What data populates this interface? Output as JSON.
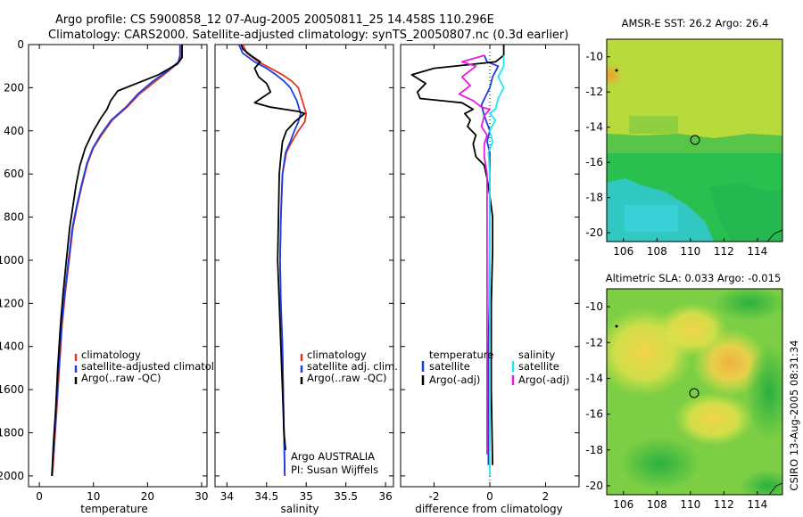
{
  "header": {
    "line1": "Argo profile: CS 5900858_12 07-Aug-2005 20050811_25 14.458S 110.296E",
    "line2": "Climatology: CARS2000. Satellite-adjusted climatology: synTS_20050807.nc (0.3d earlier)"
  },
  "footer": {
    "credit": "CSIRO 13-Aug-2005 08:31:34",
    "argo_org": "Argo AUSTRALIA",
    "pi": "PI: Susan Wijffels"
  },
  "colors": {
    "climatology": "#e8341c",
    "satellite": "#1a3fe0",
    "argo": "#000000",
    "sat_salinity": "#22e5f0",
    "argo_salinity": "#e51ce0"
  },
  "chart_data": [
    {
      "type": "line",
      "name": "temperature-profile",
      "xlabel": "temperature",
      "ylabel": "",
      "xlim": [
        -2,
        31
      ],
      "ylim": [
        2050,
        0
      ],
      "xticks": [
        0,
        10,
        20,
        30
      ],
      "yticks": [
        0,
        200,
        400,
        600,
        800,
        1000,
        1200,
        1400,
        1600,
        1800,
        2000
      ],
      "legend": [
        "climatology",
        "satellite-adjusted climatology",
        "Argo(..raw -QC)"
      ],
      "legend_position": "lower-right",
      "series": [
        {
          "name": "climatology",
          "color_key": "climatology",
          "points": [
            [
              26.3,
              0
            ],
            [
              26.3,
              50
            ],
            [
              25.8,
              80
            ],
            [
              24.0,
              120
            ],
            [
              21.5,
              170
            ],
            [
              18.5,
              230
            ],
            [
              16.2,
              290
            ],
            [
              13.5,
              350
            ],
            [
              11.5,
              420
            ],
            [
              10.0,
              480
            ],
            [
              8.9,
              550
            ],
            [
              7.9,
              650
            ],
            [
              7.0,
              750
            ],
            [
              6.2,
              850
            ],
            [
              5.5,
              1000
            ],
            [
              4.8,
              1150
            ],
            [
              4.2,
              1300
            ],
            [
              3.7,
              1500
            ],
            [
              3.2,
              1700
            ],
            [
              2.8,
              1850
            ],
            [
              2.4,
              2000
            ]
          ]
        },
        {
          "name": "satellite-adjusted climatology",
          "color_key": "satellite",
          "points": [
            [
              26.0,
              0
            ],
            [
              26.0,
              50
            ],
            [
              25.7,
              80
            ],
            [
              23.8,
              120
            ],
            [
              21.0,
              170
            ],
            [
              18.2,
              230
            ],
            [
              16.0,
              290
            ],
            [
              13.3,
              350
            ],
            [
              11.3,
              420
            ],
            [
              9.9,
              480
            ],
            [
              8.8,
              550
            ],
            [
              7.8,
              650
            ],
            [
              6.9,
              750
            ],
            [
              6.1,
              850
            ],
            [
              5.4,
              1000
            ],
            [
              4.7,
              1150
            ],
            [
              4.1,
              1300
            ],
            [
              3.6,
              1500
            ],
            [
              3.1,
              1700
            ],
            [
              2.7,
              1850
            ],
            [
              2.3,
              2000
            ]
          ]
        },
        {
          "name": "Argo(..raw -QC)",
          "color_key": "argo",
          "points": [
            [
              26.4,
              0
            ],
            [
              26.4,
              60
            ],
            [
              25.5,
              90
            ],
            [
              22.0,
              140
            ],
            [
              18.0,
              180
            ],
            [
              14.5,
              215
            ],
            [
              13.2,
              260
            ],
            [
              12.5,
              300
            ],
            [
              11.4,
              340
            ],
            [
              10.0,
              400
            ],
            [
              8.5,
              480
            ],
            [
              7.5,
              560
            ],
            [
              6.8,
              650
            ],
            [
              6.2,
              750
            ],
            [
              5.6,
              850
            ],
            [
              5.0,
              1000
            ],
            [
              4.4,
              1150
            ],
            [
              3.9,
              1300
            ],
            [
              3.4,
              1500
            ],
            [
              3.0,
              1700
            ],
            [
              2.6,
              1850
            ],
            [
              2.3,
              2000
            ]
          ]
        }
      ]
    },
    {
      "type": "line",
      "name": "salinity-profile",
      "xlabel": "salinity",
      "ylabel": "",
      "xlim": [
        33.85,
        36.1
      ],
      "ylim": [
        2050,
        0
      ],
      "xticks": [
        34,
        34.5,
        35,
        35.5,
        36
      ],
      "yticks": [
        0,
        200,
        400,
        600,
        800,
        1000,
        1200,
        1400,
        1600,
        1800,
        2000
      ],
      "legend": [
        "climatology",
        "satellite adj. clim.",
        "Argo(..raw -QC)"
      ],
      "legend_position": "lower-right",
      "series": [
        {
          "name": "climatology",
          "color_key": "climatology",
          "points": [
            [
              34.2,
              0
            ],
            [
              34.25,
              40
            ],
            [
              34.4,
              80
            ],
            [
              34.55,
              110
            ],
            [
              34.7,
              140
            ],
            [
              34.82,
              170
            ],
            [
              34.9,
              200
            ],
            [
              34.95,
              260
            ],
            [
              35.0,
              320
            ],
            [
              34.98,
              360
            ],
            [
              34.9,
              400
            ],
            [
              34.82,
              450
            ],
            [
              34.75,
              500
            ],
            [
              34.7,
              600
            ],
            [
              34.68,
              800
            ],
            [
              34.67,
              1000
            ],
            [
              34.68,
              1200
            ],
            [
              34.7,
              1400
            ],
            [
              34.71,
              1600
            ],
            [
              34.72,
              1800
            ],
            [
              34.73,
              2000
            ]
          ]
        },
        {
          "name": "satellite adj. clim.",
          "color_key": "satellite",
          "points": [
            [
              34.15,
              0
            ],
            [
              34.2,
              40
            ],
            [
              34.35,
              80
            ],
            [
              34.5,
              110
            ],
            [
              34.62,
              140
            ],
            [
              34.72,
              170
            ],
            [
              34.8,
              200
            ],
            [
              34.88,
              260
            ],
            [
              34.93,
              320
            ],
            [
              34.9,
              360
            ],
            [
              34.85,
              400
            ],
            [
              34.8,
              450
            ],
            [
              34.74,
              500
            ],
            [
              34.7,
              600
            ],
            [
              34.68,
              800
            ],
            [
              34.67,
              1000
            ],
            [
              34.68,
              1200
            ],
            [
              34.7,
              1400
            ],
            [
              34.71,
              1600
            ],
            [
              34.72,
              1800
            ],
            [
              34.73,
              2000
            ]
          ]
        },
        {
          "name": "Argo(..raw -QC)",
          "color_key": "argo",
          "points": [
            [
              34.18,
              0
            ],
            [
              34.2,
              20
            ],
            [
              34.3,
              50
            ],
            [
              34.42,
              80
            ],
            [
              34.35,
              110
            ],
            [
              34.4,
              150
            ],
            [
              34.5,
              180
            ],
            [
              34.55,
              220
            ],
            [
              34.35,
              270
            ],
            [
              34.55,
              290
            ],
            [
              34.9,
              310
            ],
            [
              34.98,
              320
            ],
            [
              34.85,
              360
            ],
            [
              34.75,
              400
            ],
            [
              34.7,
              450
            ],
            [
              34.68,
              520
            ],
            [
              34.66,
              600
            ],
            [
              34.65,
              800
            ],
            [
              34.64,
              1000
            ],
            [
              34.66,
              1200
            ],
            [
              34.68,
              1400
            ],
            [
              34.7,
              1600
            ],
            [
              34.72,
              1800
            ],
            [
              34.74,
              1880
            ]
          ]
        }
      ]
    },
    {
      "type": "line",
      "name": "difference-profile",
      "xlabel": "difference from climatology",
      "ylabel": "",
      "xlim": [
        -3.2,
        3.2
      ],
      "ylim": [
        2050,
        0
      ],
      "xticks": [
        -2,
        0,
        2
      ],
      "yticks": [
        0,
        200,
        400,
        600,
        800,
        1000,
        1200,
        1400,
        1600,
        1800,
        2000
      ],
      "legend_left": {
        "heading": "temperature",
        "entries": [
          "satellite",
          "Argo(-adj)"
        ]
      },
      "legend_right": {
        "heading": "salinity",
        "entries": [
          "satellite",
          "Argo(-adj)"
        ]
      },
      "legend_position": "lower",
      "series": [
        {
          "name": "temperature satellite",
          "color_key": "satellite",
          "points": [
            [
              -0.2,
              50
            ],
            [
              -0.1,
              80
            ],
            [
              0.3,
              100
            ],
            [
              0.1,
              150
            ],
            [
              0.0,
              200
            ],
            [
              -0.3,
              280
            ],
            [
              -0.2,
              330
            ],
            [
              0.0,
              400
            ],
            [
              -0.1,
              450
            ],
            [
              0.0,
              500
            ],
            [
              0.0,
              700
            ],
            [
              -0.02,
              1200
            ],
            [
              -0.05,
              1400
            ],
            [
              -0.05,
              1800
            ],
            [
              -0.05,
              1950
            ]
          ]
        },
        {
          "name": "temperature Argo(-adj)",
          "color_key": "argo",
          "points": [
            [
              0.5,
              0
            ],
            [
              0.5,
              50
            ],
            [
              0.2,
              80
            ],
            [
              -2.0,
              110
            ],
            [
              -2.8,
              140
            ],
            [
              -2.3,
              180
            ],
            [
              -2.6,
              220
            ],
            [
              -2.5,
              250
            ],
            [
              -1.0,
              270
            ],
            [
              -0.6,
              300
            ],
            [
              -0.9,
              320
            ],
            [
              -0.7,
              350
            ],
            [
              -0.8,
              380
            ],
            [
              -0.5,
              420
            ],
            [
              -0.6,
              460
            ],
            [
              -0.5,
              520
            ],
            [
              -0.2,
              560
            ],
            [
              -0.1,
              620
            ],
            [
              0.0,
              700
            ],
            [
              0.1,
              800
            ],
            [
              0.1,
              950
            ],
            [
              0.05,
              1200
            ],
            [
              0.05,
              1600
            ],
            [
              0.1,
              1950
            ]
          ]
        },
        {
          "name": "salinity satellite",
          "color_key": "sat_salinity",
          "points": [
            [
              0.5,
              50
            ],
            [
              0.5,
              100
            ],
            [
              0.3,
              150
            ],
            [
              0.5,
              200
            ],
            [
              0.3,
              250
            ],
            [
              0.2,
              300
            ],
            [
              0.0,
              320
            ],
            [
              0.2,
              350
            ],
            [
              0.0,
              400
            ],
            [
              0.1,
              450
            ],
            [
              -0.05,
              500
            ],
            [
              0.0,
              600
            ],
            [
              0.0,
              800
            ],
            [
              0.0,
              1200
            ],
            [
              0.0,
              1600
            ],
            [
              0.0,
              2000
            ]
          ]
        },
        {
          "name": "salinity Argo(-adj)",
          "color_key": "argo_salinity",
          "points": [
            [
              -0.2,
              50
            ],
            [
              -1.0,
              80
            ],
            [
              -0.5,
              100
            ],
            [
              -1.0,
              150
            ],
            [
              -0.7,
              190
            ],
            [
              -1.1,
              230
            ],
            [
              -0.6,
              260
            ],
            [
              -0.3,
              290
            ],
            [
              0.0,
              300
            ],
            [
              -0.2,
              330
            ],
            [
              -0.3,
              380
            ],
            [
              -0.1,
              420
            ],
            [
              -0.2,
              460
            ],
            [
              -0.2,
              520
            ],
            [
              -0.1,
              600
            ],
            [
              -0.1,
              800
            ],
            [
              -0.1,
              1200
            ],
            [
              -0.1,
              1600
            ],
            [
              -0.1,
              1900
            ]
          ]
        }
      ]
    },
    {
      "type": "heatmap",
      "name": "sst-map",
      "title": "AMSR-E SST: 26.2 Argo: 26.4",
      "xlim": [
        105,
        115.5
      ],
      "ylim": [
        -20.5,
        -9
      ],
      "xticks": [
        106,
        108,
        110,
        112,
        114
      ],
      "yticks": [
        -10,
        -12,
        -14,
        -16,
        -18,
        -20
      ],
      "marker": [
        110.3,
        -14.46
      ]
    },
    {
      "type": "heatmap",
      "name": "sla-map",
      "title": "Altimetric SLA: 0.033 Argo: -0.015",
      "xlim": [
        105,
        115.5
      ],
      "ylim": [
        -20.5,
        -9
      ],
      "xticks": [
        106,
        108,
        110,
        112,
        114
      ],
      "yticks": [
        -10,
        -12,
        -14,
        -16,
        -18,
        -20
      ],
      "marker": [
        110.3,
        -14.46
      ]
    }
  ]
}
